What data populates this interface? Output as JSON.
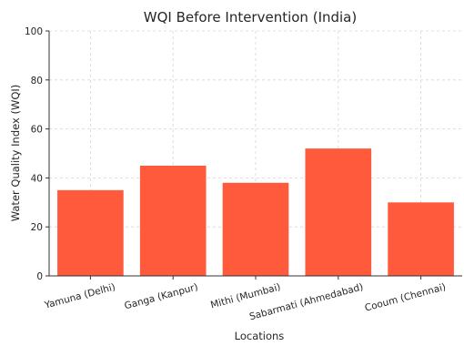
{
  "chart_data": {
    "type": "bar",
    "title": "WQI Before Intervention (India)",
    "xlabel": "Locations",
    "ylabel": "Water Quality Index (WQI)",
    "categories": [
      "Yamuna (Delhi)",
      "Ganga (Kanpur)",
      "Mithi (Mumbai)",
      "Sabarmati (Ahmedabad)",
      "Cooum (Chennai)"
    ],
    "values": [
      35,
      45,
      38,
      52,
      30
    ],
    "ylim": [
      0,
      100
    ],
    "yticks": [
      0,
      20,
      40,
      60,
      80,
      100
    ],
    "grid": true,
    "colors": {
      "bar": "#FF5A3C"
    }
  }
}
